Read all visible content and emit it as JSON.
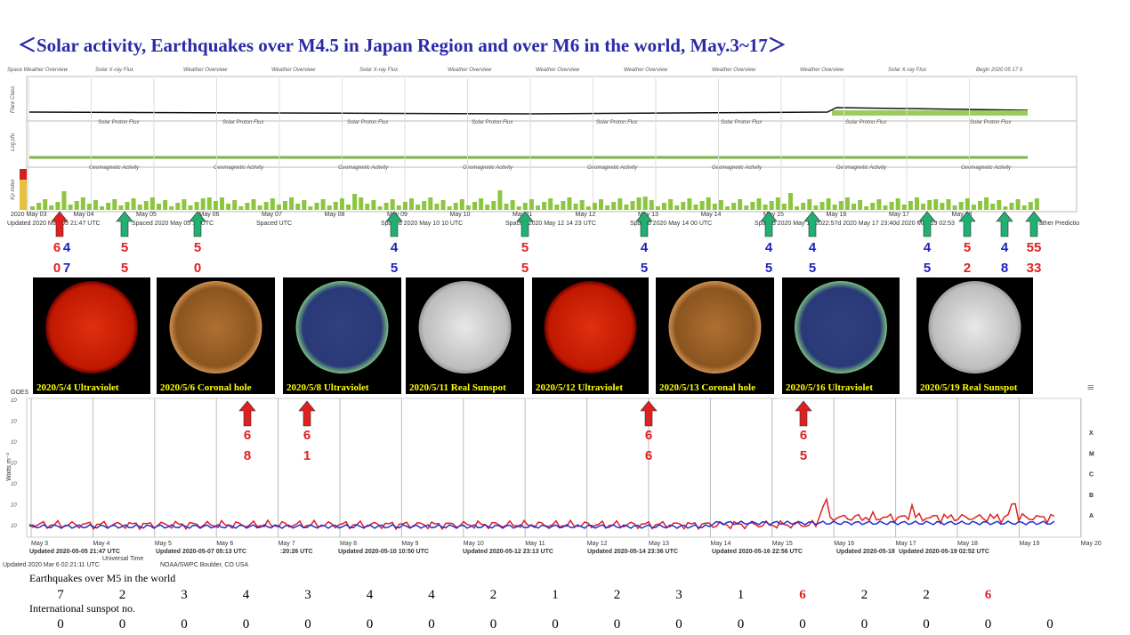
{
  "title": "＜Solar activity, Earthquakes over M4.5 in Japan Region and over M6 in the world,   May.3~17＞",
  "top_panel": {
    "headers": [
      "Space Weather Overview",
      "Solar X-ray Flux",
      "Weather Overview",
      "Weather Overview",
      "Solar X-ray Flux",
      "Weather Overview",
      "Weather Overview",
      "Weather Overview",
      "Weather Overview",
      "Weather Overview",
      "Solar X-ray Flux",
      "Begin 2020 05 17 0"
    ],
    "sub_headers": [
      "Solar Proton Flux",
      "Solar Proton Flux",
      "Solar Proton Flux",
      "Solar Proton Flux",
      "Solar Proton Flux",
      "Solar Proton Flux",
      "Solar Proton Flux",
      "Solar Proton Flux"
    ],
    "geo_headers": [
      "Geomagnetic Activity",
      "Geomagnetic Activity",
      "Geomagnetic Activity",
      "Geomagnetic Activity",
      "Geomagnetic Activity",
      "Geomagnetic Activity",
      "Geomagnetic Activity",
      "Geomagnetic Activity"
    ],
    "axis_labels": [
      "Flare Class",
      "Log pfu",
      "Kp index"
    ],
    "x_labels": [
      "2020 May 03",
      "May 04",
      "May 05",
      "May 06",
      "May 07",
      "May 08",
      "May 09",
      "May 10",
      "May 11",
      "May 12",
      "May 13",
      "May 14",
      "May 15",
      "May 16",
      "May 17",
      "May 18"
    ],
    "updates": [
      "Updated 2020 May 05 21:47 UTC",
      "Spaced 2020 May 05 13 UTC",
      "Spaced UTC",
      "Spaced 2020 May 10 10 UTC",
      "Spaced 2020 May 12 14 23 UTC",
      "Spaced 2020 May 14 00 UTC",
      "Spaced 2020 May 15 2022:57d 2020 May 17 23:40d 2020 May 19 02:53",
      "ather Predictio"
    ]
  },
  "quake_labels": [
    {
      "digits": [
        "6",
        "0"
      ],
      "color": "#e02020"
    },
    {
      "digits": [
        "4",
        "7"
      ],
      "color": "#2020c0"
    },
    {
      "digits": [
        "5",
        "5"
      ],
      "color": "#e02020"
    },
    {
      "digits": [
        "5",
        "0"
      ],
      "color": "#e02020"
    },
    {
      "digits": [
        "4",
        "5"
      ],
      "color": "#2020c0"
    },
    {
      "digits": [
        "5",
        "5"
      ],
      "color": "#e02020"
    },
    {
      "digits": [
        "4",
        "5"
      ],
      "color": "#2020c0"
    },
    {
      "digits": [
        "4",
        "5"
      ],
      "color": "#2020c0"
    },
    {
      "digits": [
        "4",
        "5"
      ],
      "color": "#2020c0"
    },
    {
      "digits": [
        "4",
        "5"
      ],
      "color": "#2020c0"
    },
    {
      "digits": [
        "5",
        "2"
      ],
      "color": "#e02020"
    },
    {
      "digits": [
        "4",
        "8"
      ],
      "color": "#2020c0"
    },
    {
      "digits": [
        "55",
        "33"
      ],
      "color": "#e02020"
    }
  ],
  "sun_images": [
    {
      "caption": "2020/5/4 Ultraviolet",
      "tone": "red"
    },
    {
      "caption": "2020/5/6 Coronal hole",
      "tone": "orange"
    },
    {
      "caption": "2020/5/8 Ultraviolet",
      "tone": "blue"
    },
    {
      "caption": "2020/5/11 Real Sunspot",
      "tone": "white"
    },
    {
      "caption": "2020/5/12 Ultraviolet",
      "tone": "red"
    },
    {
      "caption": "2020/5/13 Coronal hole",
      "tone": "orange"
    },
    {
      "caption": "2020/5/16 Ultraviolet",
      "tone": "blue"
    },
    {
      "caption": "2020/5/19 Real Sunspot",
      "tone": "white"
    }
  ],
  "goes": {
    "label": "GOES",
    "y_axis": "Watts m⁻²",
    "classes": [
      "X",
      "M",
      "C",
      "B",
      "A"
    ],
    "x_labels": [
      "May 3",
      "May 4",
      "May 5",
      "May 6",
      "May 7",
      "May 8",
      "May 9",
      "May 10",
      "May 11",
      "May 12",
      "May 13",
      "May 14",
      "May 15",
      "May 16",
      "May 17",
      "May 18",
      "May 19",
      "May 20"
    ],
    "updates": [
      "Updated 2020-05-05 21:47 UTC",
      "Updated 2020-05-07 05:13 UTC",
      ":20:26 UTC",
      "Updated 2020-05-10 10:50 UTC",
      "Updated 2020-05-12 23:13 UTC",
      "Updated 2020-05-14 23:36 UTC",
      "Updated 2020-05-16 22:56 UTC",
      "Updated 2020-05-18",
      "Updated 2020-05-19 02:52 UTC"
    ],
    "footer": [
      "Updated 2020 Mar  6 02:21:11 UTC",
      "NOAA/SWPC Boulder, CO USA",
      "Universal Time"
    ]
  },
  "flare_labels": [
    {
      "digits": [
        "6",
        "8"
      ]
    },
    {
      "digits": [
        "6",
        "1"
      ]
    },
    {
      "digits": [
        "6",
        "6"
      ]
    },
    {
      "digits": [
        "6",
        "5"
      ]
    }
  ],
  "world_quakes": {
    "label": "Earthquakes over M5 in the world",
    "values": [
      "7",
      "2",
      "3",
      "4",
      "3",
      "4",
      "4",
      "2",
      "1",
      "2",
      "3",
      "1",
      "6",
      "2",
      "2",
      "6"
    ],
    "colors": [
      "#000",
      "#000",
      "#000",
      "#000",
      "#000",
      "#000",
      "#000",
      "#000",
      "#000",
      "#000",
      "#000",
      "#000",
      "#e02020",
      "#000",
      "#000",
      "#e02020"
    ]
  },
  "sunspots": {
    "label": "International sunspot no.",
    "values": [
      "0",
      "0",
      "0",
      "0",
      "0",
      "0",
      "0",
      "0",
      "0",
      "0",
      "0",
      "0",
      "0",
      "0",
      "0",
      "0",
      "0"
    ]
  }
}
